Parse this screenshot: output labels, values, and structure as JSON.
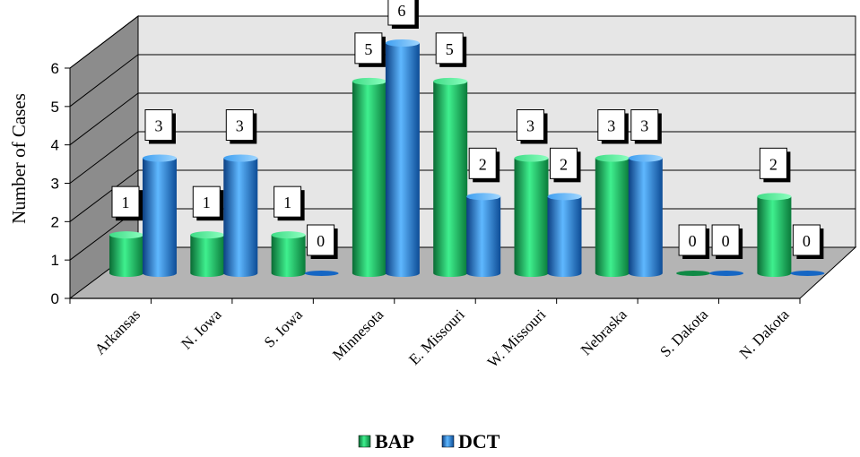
{
  "chart_data": {
    "type": "bar",
    "categories": [
      "Arkansas",
      "N. Iowa",
      "S. Iowa",
      "Minnesota",
      "E. Missouri",
      "W. Missouri",
      "Nebraska",
      "S. Dakota",
      "N. Dakota"
    ],
    "series": [
      {
        "name": "BAP",
        "values": [
          1,
          1,
          1,
          5,
          5,
          3,
          3,
          0,
          2
        ],
        "color": "#18c060"
      },
      {
        "name": "DCT",
        "values": [
          3,
          3,
          0,
          6,
          2,
          2,
          3,
          0,
          0
        ],
        "color": "#1f7fe0"
      }
    ],
    "ylabel": "Number of Cases",
    "xlabel": "",
    "ylim": [
      0,
      6
    ],
    "yticks": [
      "0",
      "1",
      "2",
      "3",
      "4",
      "5",
      "6"
    ],
    "legend_position": "bottom",
    "grid": true,
    "data_labels": true,
    "style": "3d-cylinder"
  }
}
